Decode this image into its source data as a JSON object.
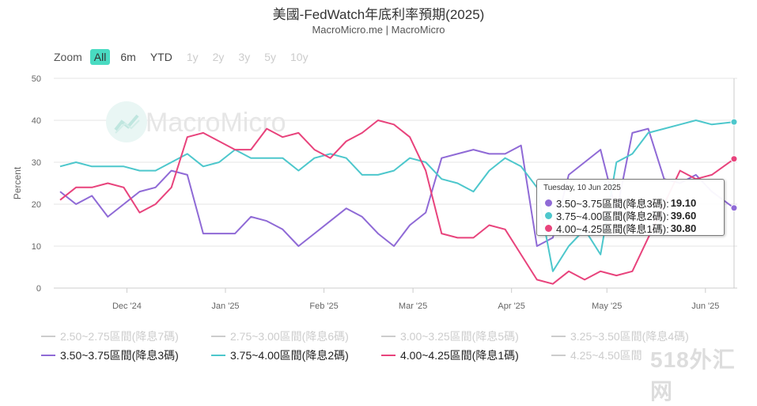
{
  "chart": {
    "title": "美國-FedWatch年底利率預期(2025)",
    "subtitle": "MacroMicro.me | MacroMicro"
  },
  "range_selector": {
    "label": "Zoom",
    "buttons": [
      {
        "label": "All",
        "state": "active"
      },
      {
        "label": "6m",
        "state": "enabled"
      },
      {
        "label": "YTD",
        "state": "enabled"
      },
      {
        "label": "1y",
        "state": "disabled"
      },
      {
        "label": "2y",
        "state": "disabled"
      },
      {
        "label": "3y",
        "state": "disabled"
      },
      {
        "label": "5y",
        "state": "disabled"
      },
      {
        "label": "10y",
        "state": "disabled"
      }
    ]
  },
  "watermark": {
    "text": "MacroMicro",
    "icon": "macromicro-chart-logo-icon"
  },
  "corner_watermark": {
    "text": "518外汇网"
  },
  "legend": {
    "items": [
      {
        "label": "2.50~2.75區間(降息7碼)",
        "state": "inactive",
        "color": "#cccccc"
      },
      {
        "label": "2.75~3.00區間(降息6碼)",
        "state": "inactive",
        "color": "#cccccc"
      },
      {
        "label": "3.00~3.25區間(降息5碼)",
        "state": "inactive",
        "color": "#cccccc"
      },
      {
        "label": "3.25~3.50區間(降息4碼)",
        "state": "inactive",
        "color": "#cccccc"
      },
      {
        "label": "3.50~3.75區間(降息3碼)",
        "state": "active",
        "color": "#8f6ad6"
      },
      {
        "label": "3.75~4.00區間(降息2碼)",
        "state": "active",
        "color": "#4dc7cc"
      },
      {
        "label": "4.00~4.25區間(降息1碼)",
        "state": "active",
        "color": "#e8437c"
      },
      {
        "label": "4.25~4.50區間",
        "state": "inactive",
        "color": "#cccccc"
      }
    ]
  },
  "tooltip": {
    "date": "Tuesday, 10 Jun 2025",
    "rows": [
      {
        "label": "3.50~3.75區間(降息3碼): ",
        "value": "19.10",
        "color": "#8f6ad6"
      },
      {
        "label": "3.75~4.00區間(降息2碼): ",
        "value": "39.60",
        "color": "#4dc7cc"
      },
      {
        "label": "4.00~4.25區間(降息1碼): ",
        "value": "30.80",
        "color": "#e8437c"
      }
    ]
  },
  "chart_data": {
    "type": "line",
    "title": "美國-FedWatch年底利率預期(2025)",
    "subtitle": "MacroMicro.me | MacroMicro",
    "xlabel": "",
    "ylabel": "Percent",
    "ylim": [
      0,
      50
    ],
    "yticks": [
      0,
      10,
      20,
      30,
      40,
      50
    ],
    "xlim": [
      "2024-11-08",
      "2025-06-11"
    ],
    "xticks": [
      {
        "label": "Dec '24",
        "date": "2024-12-01"
      },
      {
        "label": "Jan '25",
        "date": "2025-01-01"
      },
      {
        "label": "Feb '25",
        "date": "2025-02-01"
      },
      {
        "label": "Mar '25",
        "date": "2025-03-01"
      },
      {
        "label": "Apr '25",
        "date": "2025-04-01"
      },
      {
        "label": "May '25",
        "date": "2025-05-01"
      },
      {
        "label": "Jun '25",
        "date": "2025-06-01"
      }
    ],
    "grid": true,
    "legend_position": "bottom",
    "x": [
      "2024-11-10",
      "2024-11-15",
      "2024-11-20",
      "2024-11-25",
      "2024-11-30",
      "2024-12-05",
      "2024-12-10",
      "2024-12-15",
      "2024-12-20",
      "2024-12-25",
      "2024-12-30",
      "2025-01-04",
      "2025-01-09",
      "2025-01-14",
      "2025-01-19",
      "2025-01-24",
      "2025-01-29",
      "2025-02-03",
      "2025-02-08",
      "2025-02-13",
      "2025-02-18",
      "2025-02-23",
      "2025-02-28",
      "2025-03-05",
      "2025-03-10",
      "2025-03-15",
      "2025-03-20",
      "2025-03-25",
      "2025-03-30",
      "2025-04-04",
      "2025-04-09",
      "2025-04-14",
      "2025-04-19",
      "2025-04-24",
      "2025-04-29",
      "2025-05-04",
      "2025-05-09",
      "2025-05-14",
      "2025-05-19",
      "2025-05-24",
      "2025-05-29",
      "2025-06-03",
      "2025-06-10"
    ],
    "series": [
      {
        "name": "3.50~3.75區間(降息3碼)",
        "color": "#8f6ad6",
        "values": [
          23,
          20,
          22,
          17,
          20,
          23,
          24,
          28,
          27,
          13,
          13,
          13,
          17,
          16,
          14,
          10,
          13,
          16,
          19,
          17,
          13,
          10,
          15,
          18,
          31,
          32,
          33,
          32,
          32,
          34,
          10,
          12,
          27,
          30,
          33,
          18,
          37,
          38,
          26,
          25,
          27,
          23,
          19.1
        ]
      },
      {
        "name": "3.75~4.00區間(降息2碼)",
        "color": "#4dc7cc",
        "values": [
          29,
          30,
          29,
          29,
          29,
          28,
          28,
          30,
          32,
          29,
          30,
          33,
          31,
          31,
          31,
          28,
          31,
          32,
          31,
          27,
          27,
          28,
          31,
          30,
          26,
          25,
          23,
          28,
          31,
          29,
          24,
          4,
          10,
          14,
          8,
          30,
          32,
          37,
          38,
          39,
          40,
          39,
          39.6
        ]
      },
      {
        "name": "4.00~4.25區間(降息1碼)",
        "color": "#e8437c",
        "values": [
          21,
          24,
          24,
          25,
          24,
          18,
          20,
          24,
          36,
          37,
          35,
          33,
          33,
          38,
          36,
          37,
          33,
          31,
          35,
          37,
          40,
          39,
          36,
          28,
          13,
          12,
          12,
          15,
          14,
          8,
          2,
          1,
          4,
          2,
          4,
          3,
          4,
          12,
          20,
          28,
          26,
          27,
          30.8
        ]
      }
    ]
  }
}
